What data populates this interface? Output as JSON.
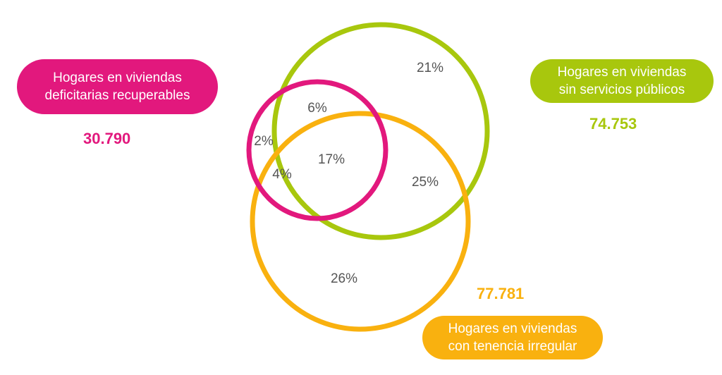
{
  "colors": {
    "magenta": "#e2187d",
    "green": "#a8c70d",
    "orange": "#f9b10f",
    "percent_text": "#555555"
  },
  "sets": {
    "deficitarias": {
      "line1": "Hogares en viviendas",
      "line2": "deficitarias recuperables",
      "count": "30.790"
    },
    "servicios": {
      "line1": "Hogares en viviendas",
      "line2": "sin servicios públicos",
      "count": "74.753"
    },
    "tenencia": {
      "line1": "Hogares en viviendas",
      "line2": "con tenencia irregular",
      "count": "77.781"
    }
  },
  "regions": {
    "only_servicios": "21%",
    "deficitarias_servicios": "6%",
    "only_deficitarias": "2%",
    "all_three": "17%",
    "deficitarias_tenencia": "4%",
    "servicios_tenencia": "25%",
    "only_tenencia": "26%"
  }
}
